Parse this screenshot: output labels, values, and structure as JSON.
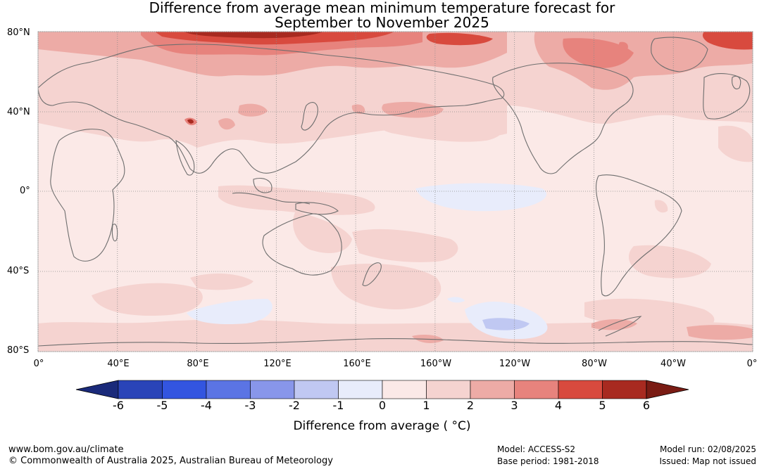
{
  "title_line1": "Difference from average mean minimum temperature forecast for",
  "title_line2": "September to November 2025",
  "lat_labels": [
    "80°N",
    "40°N",
    "0°",
    "40°S",
    "80°S"
  ],
  "lon_labels": [
    "0°",
    "40°E",
    "80°E",
    "120°E",
    "160°E",
    "160°W",
    "120°W",
    "80°W",
    "40°W",
    "0°"
  ],
  "colorbar": {
    "ticks": [
      "-6",
      "-5",
      "-4",
      "-3",
      "-2",
      "-1",
      "0",
      "1",
      "2",
      "3",
      "4",
      "5",
      "6"
    ],
    "colors": [
      "#1a2a7a",
      "#2a44b8",
      "#3355e0",
      "#5b74e4",
      "#8896ea",
      "#c0c8f2",
      "#e8ecfb",
      "#fbe9e7",
      "#f5d3d0",
      "#edaba6",
      "#e7837d",
      "#d84a3e",
      "#a82a20",
      "#7a1c14"
    ],
    "label": "Difference from average ( °C)"
  },
  "footer": {
    "url": "www.bom.gov.au/climate",
    "copyright": "© Commonwealth of Australia 2025, Australian Bureau of Meteorology",
    "model": "Model: ACCESS-S2",
    "base_period": "Base period: 1981-2018",
    "model_run": "Model run: 02/08/2025",
    "issued": "Issued: Map not issued"
  },
  "colors": {
    "ocean_base": "#fbe9e7",
    "warm_1": "#f5d3d0",
    "warm_2": "#edaba6",
    "warm_3": "#e7837d",
    "warm_4": "#d84a3e",
    "warm_5": "#a82a20",
    "cool_1": "#e8ecfb",
    "cool_2": "#c0c8f2",
    "coast": "#6e6e6e",
    "grid": "#8a8a8a"
  }
}
